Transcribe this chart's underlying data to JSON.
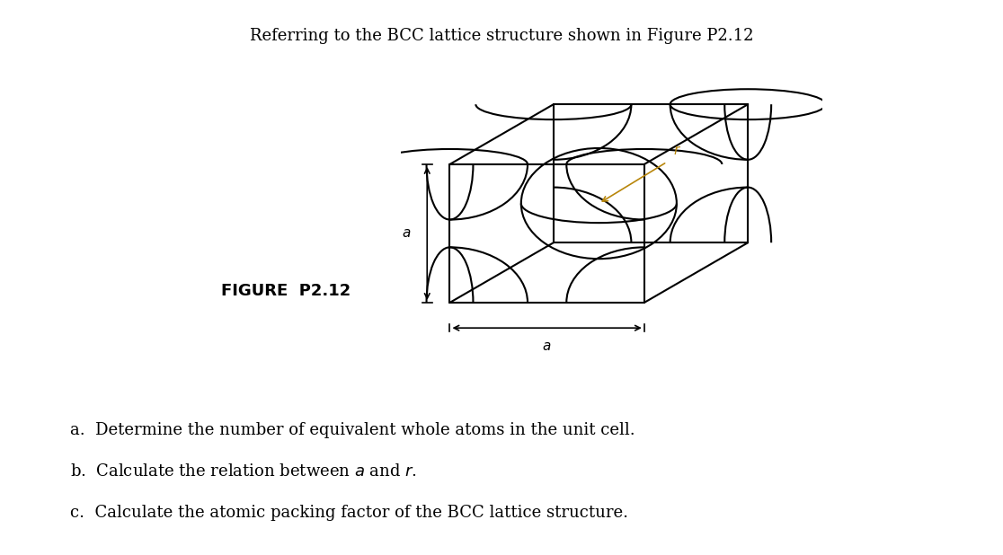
{
  "title": "Referring to the BCC lattice structure shown in Figure P2.12",
  "figure_label": "FIGURE  P2.12",
  "bg_color": "#ffffff",
  "text_color": "#000000",
  "line_color": "#000000",
  "dim_color": "#000000",
  "r_color": "#b8860b",
  "title_fontsize": 13,
  "question_fontsize": 13,
  "fig_label_fontsize": 13,
  "questions": [
    "a.  Determine the number of equivalent whole atoms in the unit cell.",
    "b.  Calculate the relation between $a$ and $r$.",
    "c.  Calculate the atomic packing factor of the BCC lattice structure."
  ]
}
